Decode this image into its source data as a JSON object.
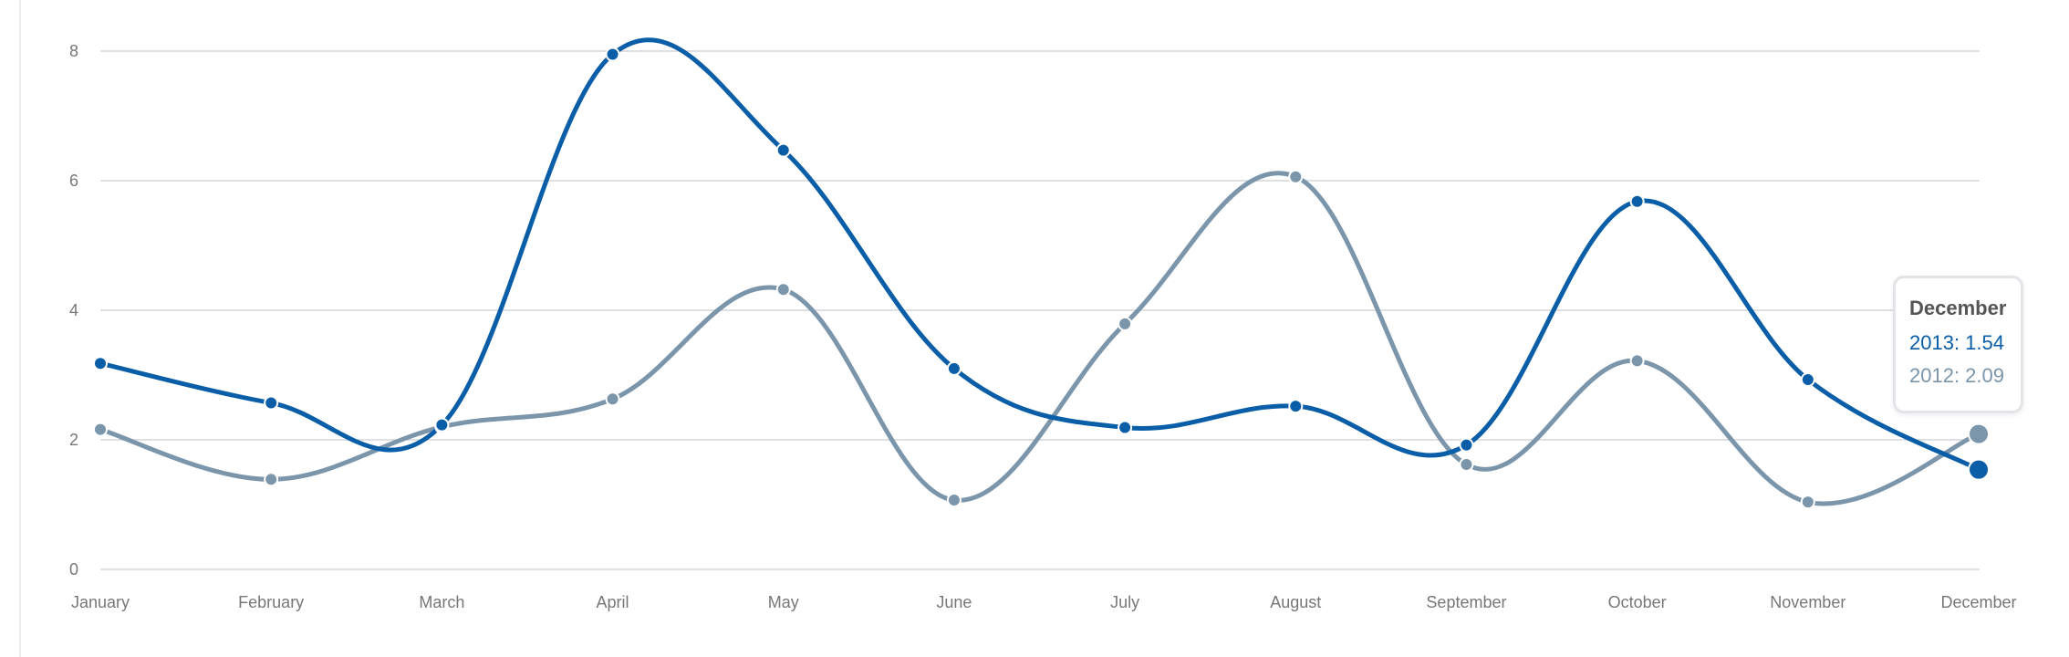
{
  "chart_data": {
    "type": "line",
    "categories": [
      "January",
      "February",
      "March",
      "April",
      "May",
      "June",
      "July",
      "August",
      "September",
      "October",
      "November",
      "December"
    ],
    "series": [
      {
        "name": "2013",
        "color": "#0a5ea8",
        "values": [
          3.18,
          2.57,
          2.23,
          7.95,
          6.47,
          3.1,
          2.19,
          2.52,
          1.92,
          5.68,
          2.93,
          1.54
        ]
      },
      {
        "name": "2012",
        "color": "#7b95ab",
        "values": [
          2.16,
          1.39,
          2.2,
          2.63,
          4.32,
          1.07,
          3.79,
          6.06,
          1.62,
          3.22,
          1.04,
          2.09
        ]
      }
    ],
    "ylim": [
      0,
      8
    ],
    "yticks": [
      0,
      2,
      4,
      6,
      8
    ],
    "grid": true,
    "highlighted_category": "December",
    "tooltip": {
      "title": "December",
      "rows": [
        "2013: 1.54",
        "2012: 2.09"
      ]
    }
  }
}
